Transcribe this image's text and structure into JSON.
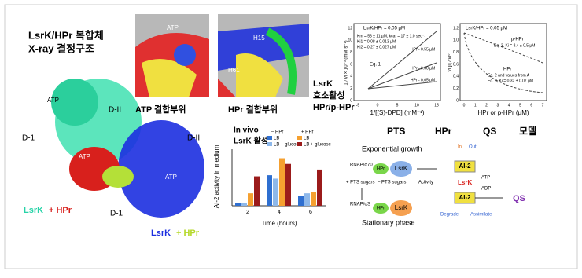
{
  "structure": {
    "title": "LsrK/HPr 복합체",
    "subtitle": "X-ray 결정구조",
    "labels": [
      "ATP",
      "D-II",
      "D-1",
      "ATP",
      "D-II",
      "ATP",
      "D-1"
    ],
    "legend_a": [
      "LsrK",
      "+ HPr"
    ],
    "legend_b": [
      "LsrK",
      "+ HPr"
    ]
  },
  "sites": {
    "atp": "ATP 결합부위",
    "hpr": "HPr 결합부위",
    "surface_labels": [
      "ATP",
      "H15",
      "H61"
    ]
  },
  "activity": [
    "LsrK",
    "효소활성",
    "HPr/p-HPr"
  ],
  "kinetics": {
    "left": {
      "header": "LsrK/HPr = 0.05 µM",
      "params": [
        "Km = 58 ± 11 µM, kcat = 17 ± 1.0 sec⁻¹",
        "Ki1 = 0.08 ± 0.013 µM",
        "Ki2 = 0.27 ± 0.027 µM"
      ],
      "eq": "Eq. 1",
      "lines": [
        "HPr - 0.55 µM",
        "HPr - 0.30 µM",
        "HPr - 0.05 µM"
      ],
      "ylabel": "1 / vi × 10⁻³ (mM·s⁻¹)",
      "xlabel": "1/[(S)-DPD] (mM⁻¹)",
      "xticks": [
        "-5",
        "0",
        "5",
        "10",
        "15"
      ],
      "yticks": [
        "0",
        "2",
        "4",
        "6",
        "8",
        "10",
        "12"
      ]
    },
    "right": {
      "header": "LsrK/HPr = 0.05 µM",
      "labels": [
        "p-HPr",
        "Eq. 3, Ki = 8.4 ± 0.5 µM",
        "HPr",
        "Eq. 2 and values from A",
        "Eq. 3, Ki = 0.32 ± 0.07 µM"
      ],
      "ylabel": "vi [I] / vi⁰",
      "xlabel": "HPr or p-HPr (µM)",
      "xticks": [
        "0",
        "1",
        "2",
        "3",
        "4",
        "5",
        "6",
        "7"
      ],
      "yticks": [
        "0",
        "0.2",
        "0.4",
        "0.6",
        "0.8",
        "1.0",
        "1.2"
      ]
    }
  },
  "chart_data": {
    "type": "bar",
    "title": "In vivo",
    "subtitle": "LsrK 활성",
    "ylabel": "AI-2 activity in medium",
    "xlabel": "Time (hours)",
    "categories": [
      "2",
      "4",
      "6"
    ],
    "ylim": [
      0,
      2.5
    ],
    "groups": [
      "– HPr",
      "+ HPr"
    ],
    "series": [
      {
        "name": "LB",
        "color": "#2f6fd0",
        "values": [
          0.12,
          1.35,
          0.42
        ]
      },
      {
        "name": "LB + glucose",
        "color": "#8eb8ea",
        "values": [
          0.12,
          1.2,
          0.55
        ]
      },
      {
        "name": "LB",
        "color": "#f5a030",
        "values": [
          0.55,
          2.1,
          0.6
        ]
      },
      {
        "name": "LB + glucose",
        "color": "#9b1b1b",
        "values": [
          1.3,
          1.85,
          1.6
        ]
      }
    ]
  },
  "model": {
    "title": [
      "PTS",
      "HPr",
      "QS",
      "모델"
    ],
    "exp": "Exponential growth",
    "rnap70": "RNAP/σ70",
    "hpr": "HPr",
    "lsrk": "LsrK",
    "ai2": "AI-2",
    "in": "In",
    "out": "Out",
    "plus": "+ PTS sugars",
    "minus": "– PTS sugars",
    "activity": "Activity",
    "atp": "ATP",
    "adp": "ADP",
    "lsrk2": "LsrK",
    "ai2b": "AI-2",
    "qs": "QS",
    "degrade": "Degrade",
    "assimilate": "Assimilate",
    "rnaps": "RNAP/σS",
    "hprp": "HPr",
    "lsrk3": "LsrK",
    "stat": "Stationary phase"
  }
}
